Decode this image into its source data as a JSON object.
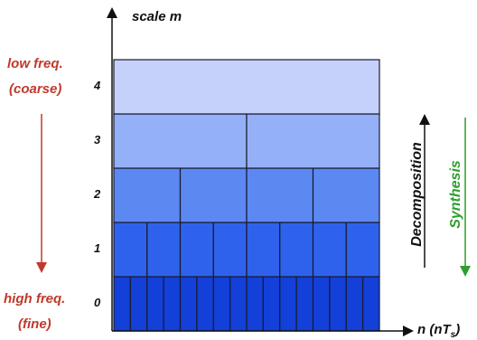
{
  "axis": {
    "y_title": "scale m",
    "x_title_prefix": "n (nT",
    "x_title_sub": "s",
    "x_title_suffix": ")"
  },
  "left_labels": {
    "low_freq": "low freq.",
    "coarse": "(coarse)",
    "high_freq": "high freq.",
    "fine": "(fine)"
  },
  "right_labels": {
    "decomposition": "Decomposition",
    "synthesis": "Synthesis"
  },
  "colors": {
    "red_label": "#c0392b",
    "green_label": "#2e9e2e",
    "row_colors": [
      "#1240d8",
      "#2f62ec",
      "#5c88f2",
      "#94b0f7",
      "#c6d1fb"
    ]
  },
  "chart_data": {
    "type": "tiling",
    "rows": [
      {
        "scale": "0",
        "cells": 16
      },
      {
        "scale": "1",
        "cells": 8
      },
      {
        "scale": "2",
        "cells": 4
      },
      {
        "scale": "3",
        "cells": 2
      },
      {
        "scale": "4",
        "cells": 1
      }
    ]
  }
}
